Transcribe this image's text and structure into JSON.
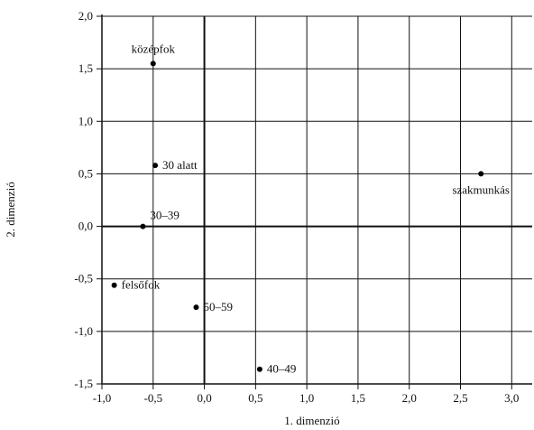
{
  "chart_data": {
    "type": "scatter",
    "title": "",
    "xlabel": "1. dimenzió",
    "ylabel": "2. dimenzió",
    "xlim": [
      -1.0,
      3.2
    ],
    "ylim": [
      -1.5,
      2.0
    ],
    "grid": true,
    "x_ticks": [
      {
        "value": -1.0,
        "label": "-1,0"
      },
      {
        "value": -0.5,
        "label": "-0,5"
      },
      {
        "value": 0.0,
        "label": "0,0"
      },
      {
        "value": 0.5,
        "label": "0,5"
      },
      {
        "value": 1.0,
        "label": "1,0"
      },
      {
        "value": 1.5,
        "label": "1,5"
      },
      {
        "value": 2.0,
        "label": "2,0"
      },
      {
        "value": 2.5,
        "label": "2,5"
      },
      {
        "value": 3.0,
        "label": "3,0"
      }
    ],
    "y_ticks": [
      {
        "value": 2.0,
        "label": "2,0"
      },
      {
        "value": 1.5,
        "label": "1,5"
      },
      {
        "value": 1.0,
        "label": "1,0"
      },
      {
        "value": 0.5,
        "label": "0,5"
      },
      {
        "value": 0.0,
        "label": "0,0"
      },
      {
        "value": -0.5,
        "label": "-0,5"
      },
      {
        "value": -1.0,
        "label": "-1,0"
      },
      {
        "value": -1.5,
        "label": "-1,5"
      }
    ],
    "points": [
      {
        "name": "középfok",
        "x": -0.5,
        "y": 1.55,
        "label_pos": "above"
      },
      {
        "name": "30 alatt",
        "x": -0.48,
        "y": 0.58,
        "label_pos": "right"
      },
      {
        "name": "szakmunkás",
        "x": 2.7,
        "y": 0.5,
        "label_pos": "below"
      },
      {
        "name": "30–39",
        "x": -0.6,
        "y": 0.0,
        "label_pos": "above-right"
      },
      {
        "name": "felsőfok",
        "x": -0.88,
        "y": -0.56,
        "label_pos": "right"
      },
      {
        "name": "50–59",
        "x": -0.08,
        "y": -0.77,
        "label_pos": "right"
      },
      {
        "name": "40–49",
        "x": 0.54,
        "y": -1.36,
        "label_pos": "right"
      }
    ]
  }
}
